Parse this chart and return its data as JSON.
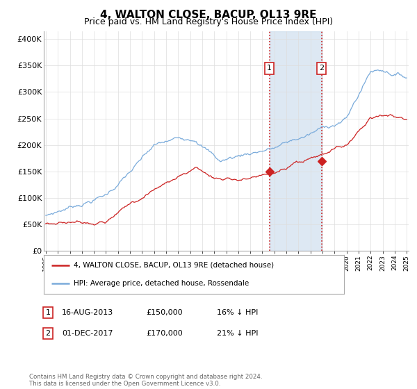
{
  "title": "4, WALTON CLOSE, BACUP, OL13 9RE",
  "subtitle": "Price paid vs. HM Land Registry's House Price Index (HPI)",
  "hpi_color": "#7aabdb",
  "price_color": "#cc2222",
  "background_color": "#ffffff",
  "legend_entry1": "4, WALTON CLOSE, BACUP, OL13 9RE (detached house)",
  "legend_entry2": "HPI: Average price, detached house, Rossendale",
  "yticks": [
    0,
    50000,
    100000,
    150000,
    200000,
    250000,
    300000,
    350000,
    400000
  ],
  "ytick_labels": [
    "£0",
    "£50K",
    "£100K",
    "£150K",
    "£200K",
    "£250K",
    "£300K",
    "£350K",
    "£400K"
  ],
  "footer": "Contains HM Land Registry data © Crown copyright and database right 2024.\nThis data is licensed under the Open Government Licence v3.0.",
  "title_fontsize": 11,
  "subtitle_fontsize": 9,
  "tick_fontsize": 8
}
